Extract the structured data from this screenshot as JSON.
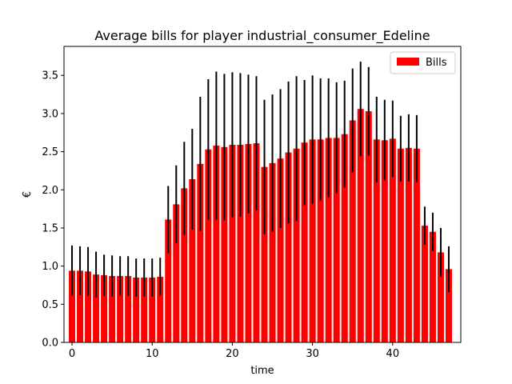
{
  "chart_data": {
    "type": "bar",
    "title": "Average bills for player industrial_consumer_Edeline",
    "xlabel": "time",
    "ylabel": "€",
    "xlim": [
      -1,
      48.5
    ],
    "ylim": [
      0,
      3.88
    ],
    "xticks": [
      0,
      10,
      20,
      30,
      40
    ],
    "yticks": [
      0.0,
      0.5,
      1.0,
      1.5,
      2.0,
      2.5,
      3.0,
      3.5
    ],
    "ytick_labels": [
      "0.0",
      "0.5",
      "1.0",
      "1.5",
      "2.0",
      "2.5",
      "3.0",
      "3.5"
    ],
    "grid": false,
    "legend_position": "top-right",
    "bar_color": "#ff0000",
    "error_color": "#000000",
    "series": [
      {
        "name": "Bills",
        "x": [
          0,
          1,
          2,
          3,
          4,
          5,
          6,
          7,
          8,
          9,
          10,
          11,
          12,
          13,
          14,
          15,
          16,
          17,
          18,
          19,
          20,
          21,
          22,
          23,
          24,
          25,
          26,
          27,
          28,
          29,
          30,
          31,
          32,
          33,
          34,
          35,
          36,
          37,
          38,
          39,
          40,
          41,
          42,
          43,
          44,
          45,
          46,
          47
        ],
        "values": [
          0.94,
          0.94,
          0.93,
          0.89,
          0.88,
          0.87,
          0.87,
          0.87,
          0.85,
          0.85,
          0.85,
          0.86,
          1.61,
          1.81,
          2.02,
          2.14,
          2.34,
          2.53,
          2.58,
          2.56,
          2.59,
          2.59,
          2.6,
          2.61,
          2.3,
          2.35,
          2.41,
          2.49,
          2.54,
          2.62,
          2.66,
          2.66,
          2.68,
          2.68,
          2.73,
          2.91,
          3.06,
          3.03,
          2.66,
          2.65,
          2.67,
          2.54,
          2.55,
          2.54,
          1.53,
          1.45,
          1.18,
          0.96
        ],
        "errors": [
          0.33,
          0.32,
          0.32,
          0.3,
          0.27,
          0.27,
          0.26,
          0.26,
          0.25,
          0.25,
          0.25,
          0.25,
          0.44,
          0.51,
          0.61,
          0.66,
          0.88,
          0.92,
          0.97,
          0.96,
          0.95,
          0.94,
          0.91,
          0.88,
          0.88,
          0.9,
          0.91,
          0.93,
          0.95,
          0.82,
          0.84,
          0.8,
          0.78,
          0.73,
          0.7,
          0.68,
          0.62,
          0.58,
          0.56,
          0.53,
          0.5,
          0.43,
          0.44,
          0.44,
          0.25,
          0.25,
          0.32,
          0.3
        ]
      }
    ]
  }
}
